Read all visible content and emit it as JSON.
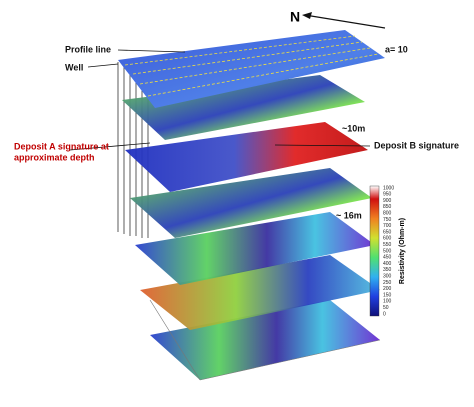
{
  "labels": {
    "north": "N",
    "profile_line": "Profile line",
    "well": "Well",
    "spacing": "a= 10",
    "depth_1": "~10m",
    "deposit_b": "Deposit B signature",
    "deposit_a": [
      "Deposit A signature at",
      "approximate depth"
    ],
    "depth_2": "~ 16m"
  },
  "colorbar": {
    "title": "Resistivity (Ohm-m)",
    "ticks": [
      1000,
      950,
      900,
      850,
      800,
      750,
      700,
      650,
      600,
      550,
      500,
      450,
      400,
      350,
      300,
      250,
      200,
      150,
      100,
      50,
      0
    ]
  }
}
